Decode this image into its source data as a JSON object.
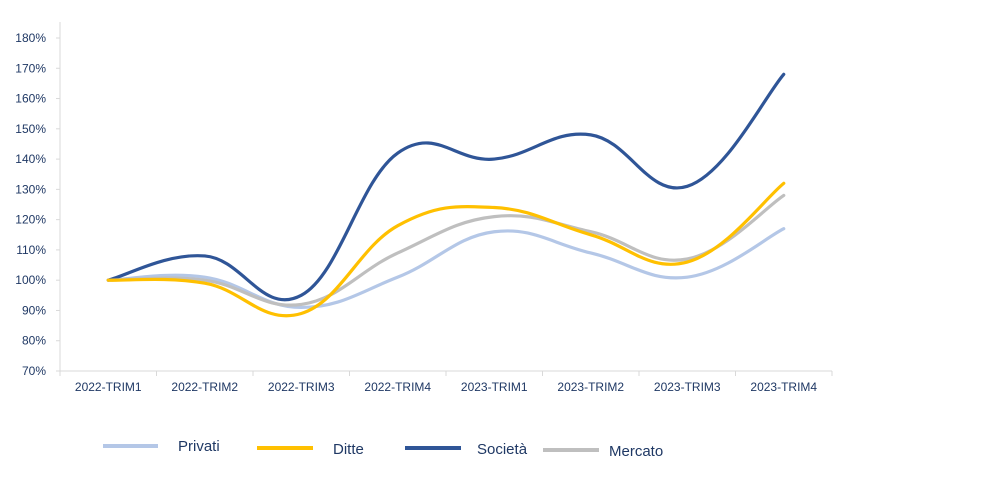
{
  "chart_data": {
    "type": "line",
    "title": "",
    "xlabel": "",
    "ylabel": "",
    "categories": [
      "2022-TRIM1",
      "2022-TRIM2",
      "2022-TRIM3",
      "2022-TRIM4",
      "2023-TRIM1",
      "2023-TRIM2",
      "2023-TRIM3",
      "2023-TRIM4"
    ],
    "ylim": [
      70,
      180
    ],
    "ytick_step": 10,
    "y_unit": "%",
    "grid": false,
    "legend_position": "bottom",
    "series": [
      {
        "name": "Privati",
        "color": "#b4c7e7",
        "values": [
          100,
          101,
          91,
          101,
          116,
          109,
          101,
          117
        ]
      },
      {
        "name": "Ditte",
        "color": "#ffc000",
        "values": [
          100,
          99,
          89,
          118,
          124,
          115,
          106,
          132
        ]
      },
      {
        "name": "Società",
        "color": "#2f5597",
        "values": [
          100,
          108,
          95,
          142,
          140,
          148,
          131,
          168
        ]
      },
      {
        "name": "Mercato",
        "color": "#bfbfbf",
        "values": [
          100,
          100,
          92,
          109,
          121,
          116,
          107,
          128
        ]
      }
    ]
  }
}
